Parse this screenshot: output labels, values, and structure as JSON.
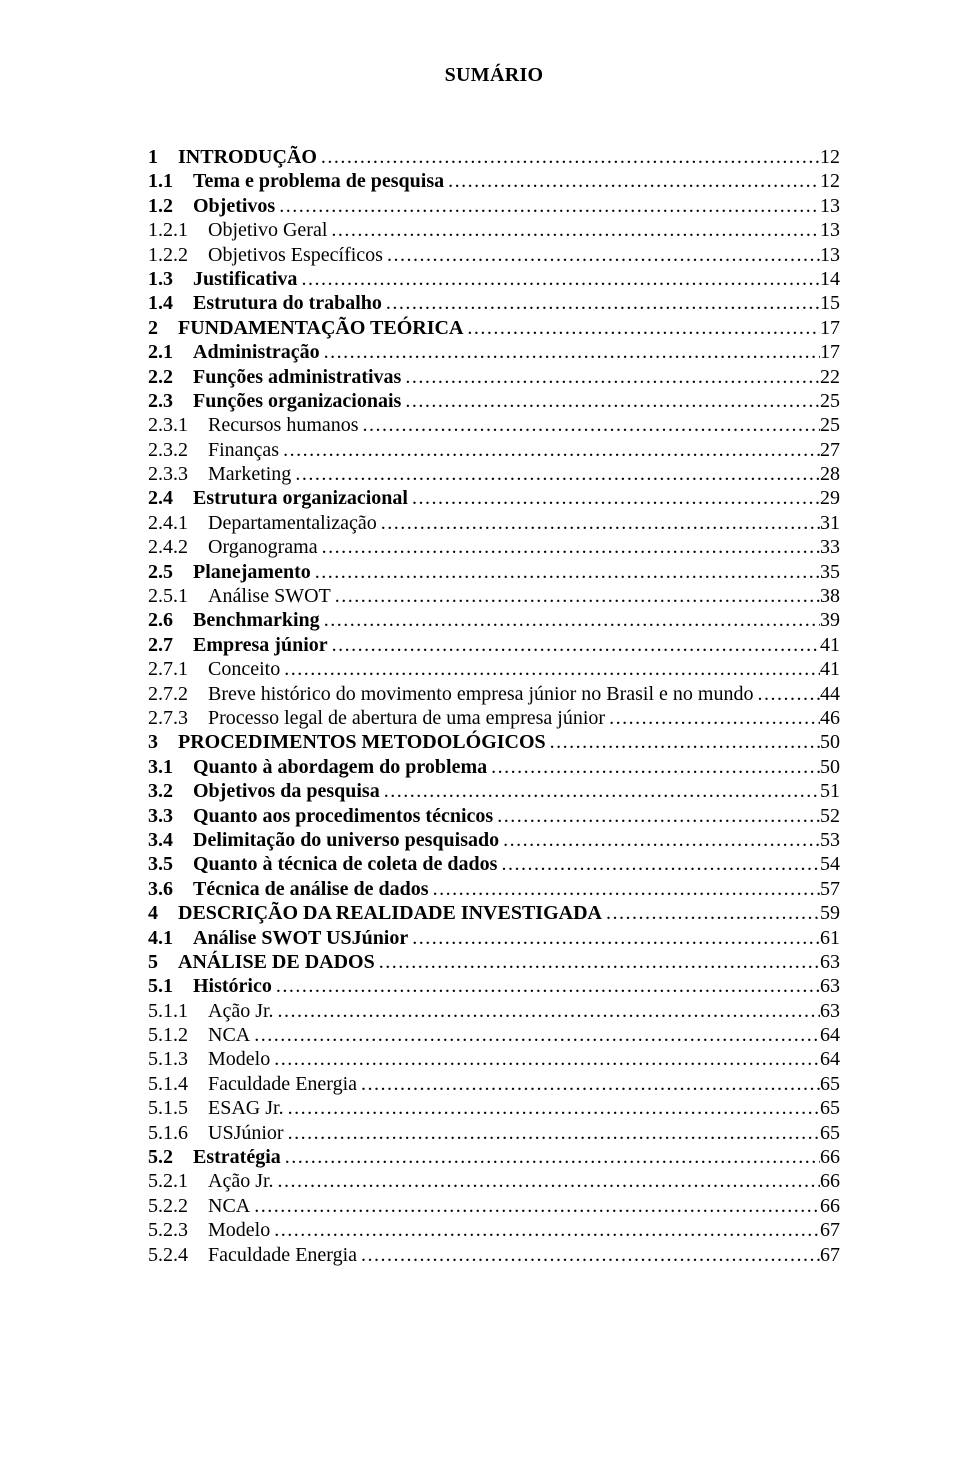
{
  "title": "SUMÁRIO",
  "font_family": "Times New Roman",
  "text_color": "#000000",
  "background_color": "#ffffff",
  "font_size_pt": 15,
  "entries": [
    {
      "num": "1",
      "label": "INTRODUÇÃO",
      "page": "12",
      "bold": true,
      "level": 1
    },
    {
      "num": "1.1",
      "label": "Tema e problema de pesquisa",
      "page": "12",
      "bold": true,
      "level": 2
    },
    {
      "num": "1.2",
      "label": "Objetivos",
      "page": "13",
      "bold": true,
      "level": 2
    },
    {
      "num": "1.2.1",
      "label": "Objetivo Geral",
      "page": "13",
      "bold": false,
      "level": 3
    },
    {
      "num": "1.2.2",
      "label": "Objetivos Específicos",
      "page": "13",
      "bold": false,
      "level": 3
    },
    {
      "num": "1.3",
      "label": "Justificativa",
      "page": "14",
      "bold": true,
      "level": 2
    },
    {
      "num": "1.4",
      "label": "Estrutura do trabalho",
      "page": "15",
      "bold": true,
      "level": 2
    },
    {
      "num": "2",
      "label": "FUNDAMENTAÇÃO TEÓRICA",
      "page": "17",
      "bold": true,
      "level": 1
    },
    {
      "num": "2.1",
      "label": "Administração",
      "page": "17",
      "bold": true,
      "level": 2
    },
    {
      "num": "2.2",
      "label": "Funções administrativas",
      "page": "22",
      "bold": true,
      "level": 2
    },
    {
      "num": "2.3",
      "label": "Funções organizacionais",
      "page": "25",
      "bold": true,
      "level": 2
    },
    {
      "num": "2.3.1",
      "label": "Recursos humanos",
      "page": "25",
      "bold": false,
      "level": 3
    },
    {
      "num": "2.3.2",
      "label": "Finanças",
      "page": "27",
      "bold": false,
      "level": 3
    },
    {
      "num": "2.3.3",
      "label": "Marketing",
      "page": "28",
      "bold": false,
      "level": 3
    },
    {
      "num": "2.4",
      "label": "Estrutura organizacional",
      "page": "29",
      "bold": true,
      "level": 2
    },
    {
      "num": "2.4.1",
      "label": "Departamentalização",
      "page": "31",
      "bold": false,
      "level": 3
    },
    {
      "num": "2.4.2",
      "label": "Organograma",
      "page": "33",
      "bold": false,
      "level": 3
    },
    {
      "num": "2.5",
      "label": "Planejamento",
      "page": "35",
      "bold": true,
      "level": 2
    },
    {
      "num": "2.5.1",
      "label": "Análise SWOT",
      "page": "38",
      "bold": false,
      "level": 3
    },
    {
      "num": "2.6",
      "label": "Benchmarking",
      "page": "39",
      "bold": true,
      "level": 2
    },
    {
      "num": "2.7",
      "label": "Empresa júnior",
      "page": "41",
      "bold": true,
      "level": 2
    },
    {
      "num": "2.7.1",
      "label": "Conceito",
      "page": "41",
      "bold": false,
      "level": 3
    },
    {
      "num": "2.7.2",
      "label": "Breve histórico do movimento empresa júnior no Brasil e no mundo",
      "page": "44",
      "bold": false,
      "level": 3
    },
    {
      "num": "2.7.3",
      "label": "Processo legal de abertura de uma empresa júnior",
      "page": "46",
      "bold": false,
      "level": 3
    },
    {
      "num": "3",
      "label": "PROCEDIMENTOS METODOLÓGICOS",
      "page": "50",
      "bold": true,
      "level": 1
    },
    {
      "num": "3.1",
      "label": "Quanto à abordagem do problema",
      "page": "50",
      "bold": true,
      "level": 2
    },
    {
      "num": "3.2",
      "label": "Objetivos da pesquisa",
      "page": "51",
      "bold": true,
      "level": 2
    },
    {
      "num": "3.3",
      "label": "Quanto aos procedimentos técnicos",
      "page": "52",
      "bold": true,
      "level": 2
    },
    {
      "num": "3.4",
      "label": "Delimitação do universo pesquisado",
      "page": "53",
      "bold": true,
      "level": 2
    },
    {
      "num": "3.5",
      "label": "Quanto à técnica de coleta de dados",
      "page": "54",
      "bold": true,
      "level": 2
    },
    {
      "num": "3.6",
      "label": "Técnica de análise de dados",
      "page": "57",
      "bold": true,
      "level": 2
    },
    {
      "num": "4",
      "label": "DESCRIÇÃO DA REALIDADE INVESTIGADA",
      "page": "59",
      "bold": true,
      "level": 1
    },
    {
      "num": "4.1",
      "label": "Análise SWOT USJúnior",
      "page": "61",
      "bold": true,
      "level": 2
    },
    {
      "num": "5",
      "label": "ANÁLISE DE DADOS",
      "page": "63",
      "bold": true,
      "level": 1
    },
    {
      "num": "5.1",
      "label": "Histórico",
      "page": "63",
      "bold": true,
      "level": 2
    },
    {
      "num": "5.1.1",
      "label": "Ação Jr.",
      "page": "63",
      "bold": false,
      "level": 3
    },
    {
      "num": "5.1.2",
      "label": "NCA",
      "page": "64",
      "bold": false,
      "level": 3
    },
    {
      "num": "5.1.3",
      "label": "Modelo",
      "page": "64",
      "bold": false,
      "level": 3
    },
    {
      "num": "5.1.4",
      "label": "Faculdade Energia",
      "page": "65",
      "bold": false,
      "level": 3
    },
    {
      "num": "5.1.5",
      "label": "ESAG Jr.",
      "page": "65",
      "bold": false,
      "level": 3
    },
    {
      "num": "5.1.6",
      "label": "USJúnior",
      "page": "65",
      "bold": false,
      "level": 3
    },
    {
      "num": "5.2",
      "label": "Estratégia",
      "page": "66",
      "bold": true,
      "level": 2
    },
    {
      "num": "5.2.1",
      "label": "Ação Jr.",
      "page": "66",
      "bold": false,
      "level": 3
    },
    {
      "num": "5.2.2",
      "label": "NCA",
      "page": "66",
      "bold": false,
      "level": 3
    },
    {
      "num": "5.2.3",
      "label": "Modelo",
      "page": "67",
      "bold": false,
      "level": 3
    },
    {
      "num": "5.2.4",
      "label": "Faculdade Energia",
      "page": "67",
      "bold": false,
      "level": 3
    }
  ]
}
